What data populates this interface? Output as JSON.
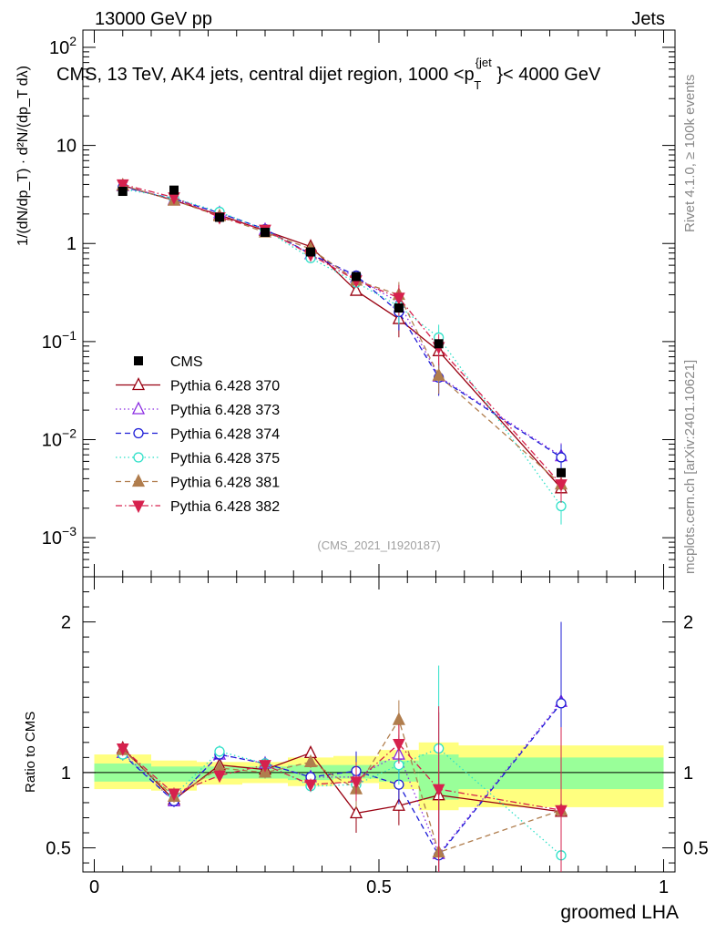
{
  "header": {
    "left": "13000 GeV pp",
    "right": "Jets"
  },
  "side_labels": {
    "rivet": "Rivet 4.1.0, ≥ 100k events",
    "mcplots": "mcplots.cern.ch [arXiv:2401.10621]"
  },
  "colors": {
    "cms": "#000000",
    "p370": "#990011",
    "p373": "#8a2be2",
    "p374": "#1c1cd6",
    "p375": "#2de0c8",
    "p381": "#b07d4d",
    "p382": "#d6214d",
    "band_yellow": "#ffff7f",
    "band_green": "#99ff99"
  },
  "chart_data": [
    {
      "type": "line",
      "panel": "main",
      "title": "CMS, 13 TeV, AK4 jets, central dijet region, 1000 <p_T^{jet}< 4000 GeV",
      "title_parts": {
        "main": "CMS, 13 TeV, AK4 jets, central dijet region, 1000 <p",
        "sub": "T",
        "sup": "{jet",
        "tail": "}< 4000 GeV"
      },
      "ylabel": "1/(dN/dp_T) · d²N/(dp_T dλ)",
      "yscale": "log",
      "ylim": [
        0.0004,
        150
      ],
      "xlim": [
        -0.02,
        1.02
      ],
      "y_ticks": [
        {
          "value": 100,
          "base": "10",
          "exp": "2"
        },
        {
          "value": 10,
          "base": "10",
          "exp": ""
        },
        {
          "value": 1,
          "base": "1",
          "exp": ""
        },
        {
          "value": 0.1,
          "base": "10",
          "exp": "−1"
        },
        {
          "value": 0.01,
          "base": "10",
          "exp": "−2"
        },
        {
          "value": 0.001,
          "base": "10",
          "exp": "−3"
        }
      ],
      "watermark": "(CMS_2021_I1920187)",
      "x": [
        0.05,
        0.14,
        0.22,
        0.3,
        0.38,
        0.46,
        0.535,
        0.605,
        0.82
      ],
      "series": [
        {
          "name": "CMS",
          "color_key": "cms",
          "marker": "square-filled",
          "dash": "none",
          "values": [
            3.4,
            3.5,
            1.85,
            1.3,
            0.82,
            0.46,
            0.22,
            0.095,
            0.0046
          ]
        },
        {
          "name": "Pythia 6.428 370",
          "color_key": "p370",
          "marker": "triangle-open",
          "dash": "solid",
          "values": [
            3.9,
            2.75,
            1.95,
            1.35,
            0.93,
            0.33,
            0.17,
            0.08,
            0.0032
          ]
        },
        {
          "name": "Pythia 6.428 373",
          "color_key": "p373",
          "marker": "triangle-open",
          "dash": "dot",
          "values": [
            3.85,
            2.8,
            2.05,
            1.38,
            0.78,
            0.45,
            0.25,
            0.044,
            0.0068
          ]
        },
        {
          "name": "Pythia 6.428 374",
          "color_key": "p374",
          "marker": "circle-open",
          "dash": "dash",
          "values": [
            3.75,
            2.85,
            2.05,
            1.4,
            0.78,
            0.47,
            0.2,
            0.043,
            0.0066
          ]
        },
        {
          "name": "Pythia 6.428 375",
          "color_key": "p375",
          "marker": "circle-open",
          "dash": "dot",
          "values": [
            3.6,
            2.9,
            2.1,
            1.38,
            0.71,
            0.4,
            0.23,
            0.11,
            0.0021
          ]
        },
        {
          "name": "Pythia 6.428 381",
          "color_key": "p381",
          "marker": "triangle-filled",
          "dash": "dash",
          "values": [
            3.9,
            2.75,
            1.9,
            1.3,
            0.88,
            0.42,
            0.3,
            0.045,
            0.0035
          ]
        },
        {
          "name": "Pythia 6.428 382",
          "color_key": "p382",
          "marker": "triangle-down-filled",
          "dash": "dashdot",
          "values": [
            4.0,
            2.95,
            1.85,
            1.38,
            0.77,
            0.42,
            0.28,
            0.088,
            0.0035
          ]
        }
      ],
      "legend_position": "left-middle"
    },
    {
      "type": "line",
      "panel": "ratio",
      "ylabel": "Ratio to CMS",
      "xlabel": "groomed LHA",
      "ylim": [
        0.34,
        2.3
      ],
      "xlim": [
        -0.02,
        1.02
      ],
      "y_ticks": [
        {
          "value": 0.5,
          "label": "0.5"
        },
        {
          "value": 1,
          "label": "1"
        },
        {
          "value": 2,
          "label": "2"
        }
      ],
      "x_ticks": [
        {
          "value": 0,
          "label": "0"
        },
        {
          "value": 0.5,
          "label": "0.5"
        },
        {
          "value": 1,
          "label": "1"
        }
      ],
      "bins": [
        0.0,
        0.1,
        0.18,
        0.26,
        0.34,
        0.42,
        0.5,
        0.57,
        0.64,
        1.0
      ],
      "band_yellow": [
        [
          0.89,
          1.12
        ],
        [
          0.88,
          1.08
        ],
        [
          0.92,
          1.07
        ],
        [
          0.93,
          1.07
        ],
        [
          0.91,
          1.1
        ],
        [
          0.93,
          1.11
        ],
        [
          0.89,
          1.15
        ],
        [
          0.75,
          1.2
        ],
        [
          0.77,
          1.18
        ]
      ],
      "band_green": [
        [
          0.94,
          1.06
        ],
        [
          0.94,
          1.04
        ],
        [
          0.96,
          1.04
        ],
        [
          0.96,
          1.04
        ],
        [
          0.95,
          1.05
        ],
        [
          0.96,
          1.05
        ],
        [
          0.94,
          1.08
        ],
        [
          0.82,
          1.12
        ],
        [
          0.89,
          1.1
        ]
      ],
      "ratio_values": {
        "Pythia 6.428 370": [
          1.16,
          0.82,
          1.05,
          1.02,
          1.13,
          0.73,
          0.78,
          0.85,
          0.74
        ],
        "Pythia 6.428 373": [
          1.13,
          0.81,
          1.12,
          1.06,
          0.97,
          0.97,
          1.12,
          0.46,
          1.47
        ],
        "Pythia 6.428 374": [
          1.12,
          0.81,
          1.12,
          1.06,
          0.97,
          1.01,
          0.92,
          0.45,
          1.46
        ],
        "Pythia 6.428 375": [
          1.12,
          0.85,
          1.14,
          1.06,
          0.91,
          0.92,
          1.05,
          1.16,
          0.45
        ],
        "Pythia 6.428 381": [
          1.15,
          0.84,
          1.03,
          1.0,
          1.07,
          0.89,
          1.35,
          0.47,
          0.75
        ],
        "Pythia 6.428 382": [
          1.16,
          0.86,
          0.98,
          1.05,
          0.92,
          0.94,
          1.19,
          0.89,
          0.75
        ]
      }
    }
  ]
}
